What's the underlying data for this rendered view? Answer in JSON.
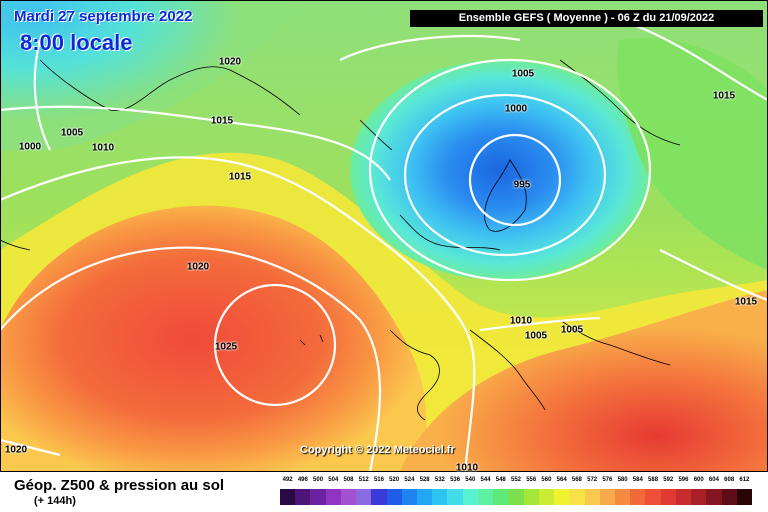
{
  "header": {
    "date": "Mardi 27 septembre 2022",
    "time": "8:00 locale",
    "run": "Ensemble GEFS  ( Moyenne )  -  06 Z du 21/09/2022"
  },
  "copyright": "Copyright © 2022 Meteociel.fr",
  "footer": {
    "product": "Géop. Z500 & pression au sol",
    "lead": "(+ 144h)"
  },
  "isobar_labels": [
    "1020",
    "1005",
    "1000",
    "1010",
    "1015",
    "1015",
    "1020",
    "1025",
    "1020",
    "1005",
    "1000",
    "995",
    "1015",
    "1010",
    "1005",
    "1005",
    "1015",
    "1010"
  ],
  "colorscale": {
    "ticks": [
      "492",
      "496",
      "500",
      "504",
      "508",
      "512",
      "516",
      "520",
      "524",
      "528",
      "532",
      "536",
      "540",
      "544",
      "548",
      "552",
      "556",
      "560",
      "564",
      "568",
      "572",
      "576",
      "580",
      "584",
      "588",
      "592",
      "596",
      "600",
      "604",
      "608",
      "612"
    ],
    "colors": [
      "#2a0a45",
      "#4c1577",
      "#6b22a3",
      "#8f35c2",
      "#a54fd1",
      "#8b6ce0",
      "#3a3ad8",
      "#1f5ce8",
      "#1e84f2",
      "#25a6f5",
      "#2ec4f2",
      "#43dcea",
      "#5af0d2",
      "#5cf0a0",
      "#5de878",
      "#7ae04c",
      "#a4e63a",
      "#caec34",
      "#eef22f",
      "#f9e246",
      "#fbc84e",
      "#f8a94a",
      "#f68a40",
      "#f26a38",
      "#ee4f36",
      "#e13a34",
      "#c92b2f",
      "#a81f28",
      "#851521",
      "#5f0d18",
      "#2a0508"
    ]
  }
}
